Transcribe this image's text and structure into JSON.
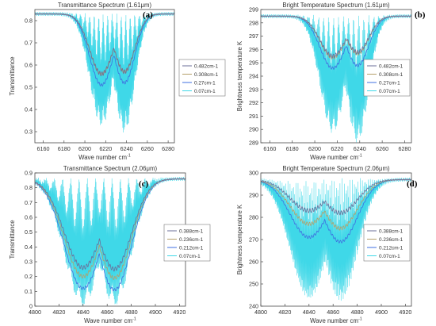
{
  "figure": {
    "colors": {
      "res1": "#6b6f9a",
      "res2": "#b5a06a",
      "res3": "#3f6fe0",
      "res4": "#3fd8e8",
      "frame": "#4a4a4a",
      "tick_text": "#333333"
    }
  },
  "chart_data": [
    {
      "panel": "(a)",
      "type": "line",
      "title": "Transmittance Spectrum (1.61μm)",
      "xlabel": "Wave number cm",
      "xlabel_sup": "-1",
      "ylabel": "Transmittance",
      "xlim": [
        6152,
        6286
      ],
      "ylim": [
        0.25,
        0.85
      ],
      "xticks": [
        6160,
        6180,
        6200,
        6220,
        6240,
        6260,
        6280
      ],
      "yticks": [
        0.3,
        0.4,
        0.5,
        0.6,
        0.7,
        0.8
      ],
      "legend": [
        "0.482cm-1",
        "0.308cm-1",
        "0.27cm-1",
        "0.07cm-1"
      ],
      "legend_position": "right",
      "baseline": 0.83,
      "bands": [
        {
          "center": 6216,
          "width": 16,
          "series_minima": [
            0.56,
            0.56,
            0.51,
            0.33
          ]
        },
        {
          "center": 6238,
          "width": 14,
          "series_minima": [
            0.57,
            0.57,
            0.52,
            0.3
          ]
        }
      ]
    },
    {
      "panel": "(b)",
      "type": "line",
      "title": "Bright Temperature Spectrum (1.61μm)",
      "xlabel": "Wave number cm",
      "xlabel_sup": "-1",
      "ylabel": "Brightness temperature K",
      "xlim": [
        6152,
        6286
      ],
      "ylim": [
        289,
        299
      ],
      "xticks": [
        6160,
        6180,
        6200,
        6220,
        6240,
        6260,
        6280
      ],
      "yticks": [
        289,
        290,
        291,
        292,
        293,
        294,
        295,
        296,
        297,
        298,
        299
      ],
      "legend": [
        "0.482cm-1",
        "0.308cm-1",
        "0.27cm-1",
        "0.07cm-1"
      ],
      "legend_position": "right",
      "baseline": 298.5,
      "bands": [
        {
          "center": 6216,
          "width": 16,
          "series_minima": [
            295.5,
            295.4,
            294.6,
            289.8
          ]
        },
        {
          "center": 6238,
          "width": 14,
          "series_minima": [
            295.8,
            295.7,
            294.8,
            289.1
          ]
        }
      ]
    },
    {
      "panel": "(c)",
      "type": "line",
      "title": "Transmittance Spectrum (2.06μm)",
      "xlabel": "Wave number cm",
      "xlabel_sup": "-1",
      "ylabel": "Transmittance",
      "xlim": [
        4800,
        4925
      ],
      "ylim": [
        0,
        0.9
      ],
      "xticks": [
        4800,
        4820,
        4840,
        4860,
        4880,
        4900,
        4920
      ],
      "yticks": [
        0,
        0.1,
        0.2,
        0.3,
        0.4,
        0.5,
        0.6,
        0.7,
        0.8,
        0.9
      ],
      "legend": [
        "0.388cm-1",
        "0.236cm-1",
        "0.212cm-1",
        "0.07cm-1"
      ],
      "legend_position": "right",
      "baseline": 0.86,
      "bands": [
        {
          "center": 4840,
          "width": 22,
          "series_minima": [
            0.26,
            0.2,
            0.12,
            0.01
          ]
        },
        {
          "center": 4866,
          "width": 20,
          "series_minima": [
            0.25,
            0.19,
            0.11,
            0.01
          ]
        }
      ]
    },
    {
      "panel": "(d)",
      "type": "line",
      "title": "Bright Temperature Spectrum (2.06μm)",
      "xlabel": "Wave number cm",
      "xlabel_sup": "-1",
      "ylabel": "Brightness temperature K",
      "xlim": [
        4800,
        4925
      ],
      "ylim": [
        240,
        300
      ],
      "xticks": [
        4800,
        4820,
        4840,
        4860,
        4880,
        4900,
        4920
      ],
      "yticks": [
        240,
        250,
        260,
        270,
        280,
        290,
        300
      ],
      "legend": [
        "0.388cm-1",
        "0.236cm-1",
        "0.212cm-1",
        "0.07cm-1"
      ],
      "legend_position": "right",
      "baseline": 297,
      "bands": [
        {
          "center": 4840,
          "width": 22,
          "series_minima": [
            283,
            277,
            271,
            243
          ]
        },
        {
          "center": 4866,
          "width": 20,
          "series_minima": [
            282,
            275,
            269,
            243
          ]
        }
      ]
    }
  ]
}
